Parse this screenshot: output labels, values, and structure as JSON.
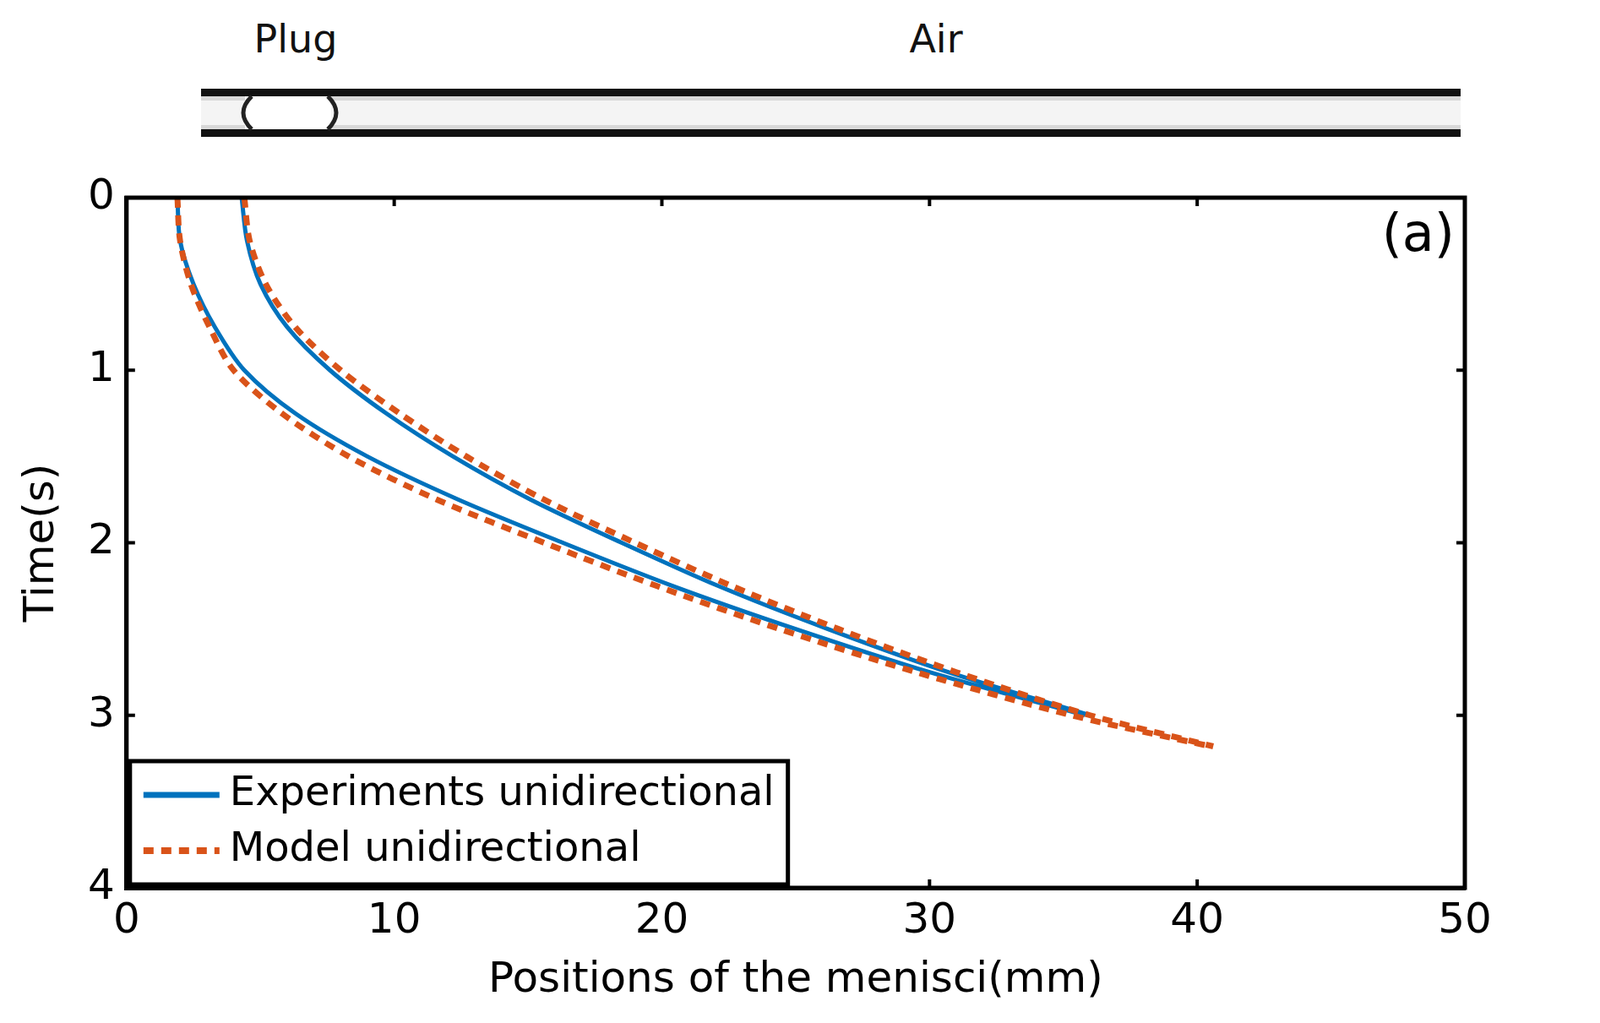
{
  "header_image": {
    "labels": [
      "Plug",
      "Air"
    ]
  },
  "chart_data": {
    "type": "line",
    "xlabel": "Positions of the menisci(mm)",
    "ylabel": "Time(s)",
    "annotations": [
      "(a)"
    ],
    "xlim": [
      0,
      50
    ],
    "xticks": [
      0,
      10,
      20,
      30,
      40,
      50
    ],
    "ylim": [
      4,
      0
    ],
    "yticks": [
      0,
      1,
      2,
      3,
      4
    ],
    "grid": false,
    "legend": "lower left",
    "series": [
      {
        "name": "Experiments unidirectional",
        "color": "#0072bd",
        "line_style": "solid",
        "x": [
          1.9,
          2.0,
          2.5,
          3.3,
          4.4,
          6.3,
          9.0,
          12.4,
          16.3,
          20.4,
          25.0,
          30.0,
          35.8,
          null,
          4.3,
          4.5,
          5.0,
          6.0,
          7.6,
          9.7,
          12.2,
          15.1,
          18.5,
          22.1,
          26.2,
          30.7,
          36.0
        ],
        "y": [
          0,
          0.25,
          0.5,
          0.75,
          1.0,
          1.25,
          1.5,
          1.75,
          2.0,
          2.25,
          2.5,
          2.75,
          3.0,
          null,
          0,
          0.25,
          0.5,
          0.75,
          1.0,
          1.25,
          1.5,
          1.75,
          2.0,
          2.25,
          2.5,
          2.75,
          3.0
        ]
      },
      {
        "name": "Model unidirectional",
        "color": "#d95319",
        "line_style": "dotted",
        "x": [
          1.9,
          2.0,
          2.4,
          3.1,
          4.0,
          5.8,
          8.3,
          11.6,
          15.6,
          19.8,
          24.4,
          29.5,
          35.3,
          40.5,
          null,
          4.4,
          4.6,
          5.2,
          6.3,
          8.0,
          10.2,
          12.7,
          15.6,
          19.0,
          22.6,
          26.6,
          31.0,
          36.0,
          40.6
        ],
        "y": [
          0,
          0.25,
          0.5,
          0.75,
          1.0,
          1.25,
          1.5,
          1.75,
          2.0,
          2.25,
          2.5,
          2.75,
          3.0,
          3.18,
          null,
          0,
          0.25,
          0.5,
          0.75,
          1.0,
          1.25,
          1.5,
          1.75,
          2.0,
          2.25,
          2.5,
          2.75,
          3.0,
          3.18
        ]
      }
    ]
  }
}
